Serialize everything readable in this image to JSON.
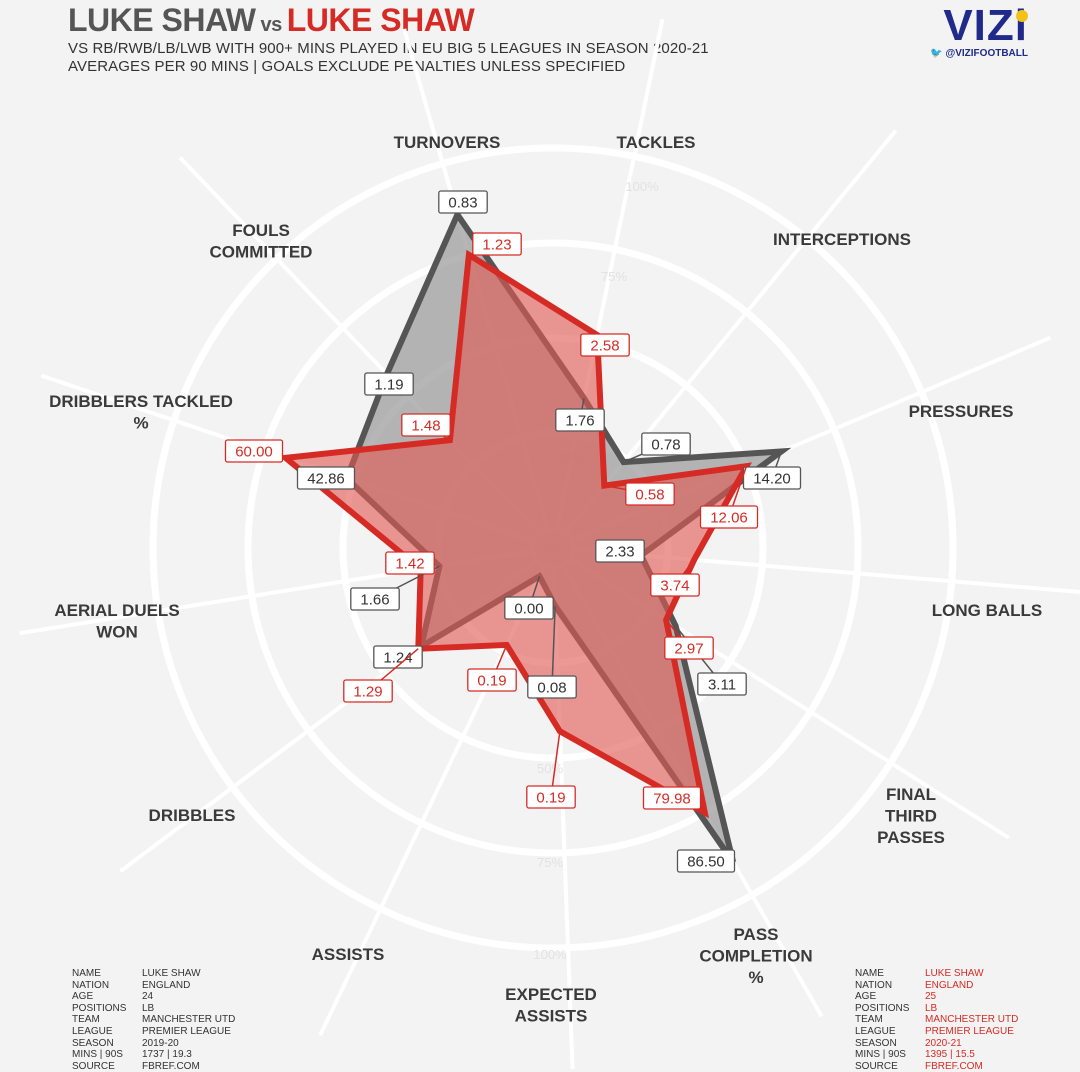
{
  "title": {
    "player1": "LUKE SHAW",
    "vs": "vs",
    "player2": "LUKE SHAW"
  },
  "subtitle1": "VS RB/RWB/LB/LWB WITH 900+ MINS PLAYED IN EU BIG 5 LEAGUES IN SEASON 2020-21",
  "subtitle2": "AVERAGES PER 90 MINS | GOALS EXCLUDE PENALTIES UNLESS SPECIFIED",
  "logo": {
    "word": "VIZi",
    "handle": "@VIZIFOOTBALL"
  },
  "colors": {
    "player1": "#555555",
    "player2": "#d62b25",
    "player1_fill": "#9e9e9e",
    "player2_fill": "#e05a55"
  },
  "chart_data": {
    "type": "radar",
    "rings": [
      "0%",
      "25%",
      "50%",
      "75%",
      "100%"
    ],
    "axes": [
      "TURNOVERS",
      "TACKLES",
      "INTERCEPTIONS",
      "PRESSURES",
      "LONG BALLS",
      "FINAL THIRD PASSES",
      "PASS COMPLETION %",
      "EXPECTED ASSISTS",
      "ASSISTS",
      "DRIBBLES",
      "AERIAL DUELS WON",
      "DRIBBLERS TACKLED %",
      "FOULS COMMITTED"
    ],
    "series": [
      {
        "name": "LUKE SHAW 2019-20",
        "percentiles": [
          0.86,
          0.35,
          0.24,
          0.6,
          0.18,
          0.33,
          0.9,
          0.1,
          0.03,
          0.38,
          0.25,
          0.52,
          0.58
        ],
        "labels": [
          "0.83",
          "1.76",
          "0.78",
          "14.20",
          "2.33",
          "3.11",
          "86.50",
          "0.08",
          "0.00",
          "1.24",
          "1.66",
          "42.86",
          "1.19"
        ]
      },
      {
        "name": "LUKE SHAW 2020-21",
        "percentiles": [
          0.75,
          0.52,
          0.16,
          0.5,
          0.32,
          0.3,
          0.75,
          0.43,
          0.23,
          0.39,
          0.3,
          0.69,
          0.34
        ],
        "labels": [
          "1.23",
          "2.58",
          "0.58",
          "12.06",
          "3.74",
          "2.97",
          "79.98",
          "0.19",
          "0.19",
          "1.29",
          "1.42",
          "60.00",
          "1.48"
        ]
      }
    ]
  },
  "info_left": {
    "rows": [
      {
        "k": "NAME",
        "v": "LUKE SHAW"
      },
      {
        "k": "NATION",
        "v": "ENGLAND"
      },
      {
        "k": "AGE",
        "v": "24"
      },
      {
        "k": "POSITIONS",
        "v": "LB"
      },
      {
        "k": "TEAM",
        "v": "MANCHESTER UTD"
      },
      {
        "k": "LEAGUE",
        "v": "PREMIER LEAGUE"
      },
      {
        "k": "SEASON",
        "v": "2019-20"
      },
      {
        "k": "MINS | 90S",
        "v": "1737 | 19.3"
      },
      {
        "k": "SOURCE",
        "v": "FBREF.COM"
      }
    ]
  },
  "info_right": {
    "rows": [
      {
        "k": "NAME",
        "v": "LUKE SHAW"
      },
      {
        "k": "NATION",
        "v": "ENGLAND"
      },
      {
        "k": "AGE",
        "v": "25"
      },
      {
        "k": "POSITIONS",
        "v": "LB"
      },
      {
        "k": "TEAM",
        "v": "MANCHESTER UTD"
      },
      {
        "k": "LEAGUE",
        "v": "PREMIER LEAGUE"
      },
      {
        "k": "SEASON",
        "v": "2020-21"
      },
      {
        "k": "MINS | 90S",
        "v": "1395 | 15.5"
      },
      {
        "k": "SOURCE",
        "v": "FBREF.COM"
      }
    ]
  }
}
